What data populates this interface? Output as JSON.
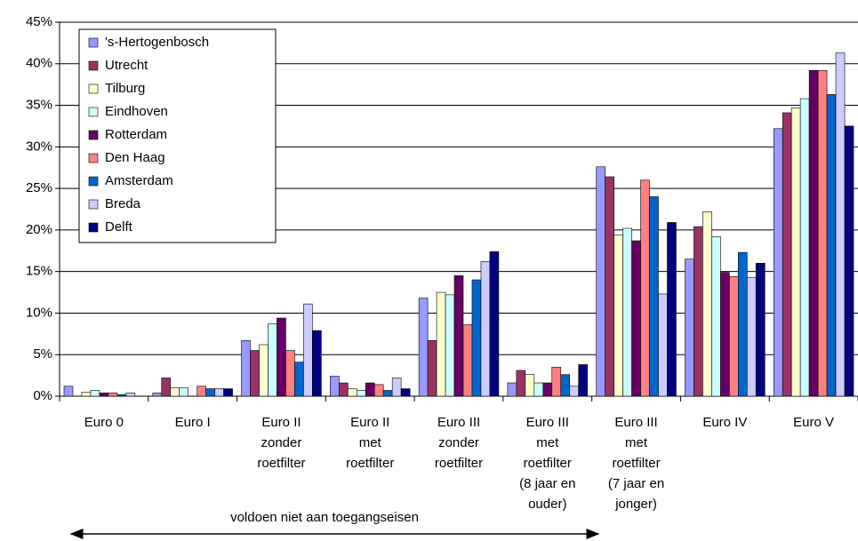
{
  "chart_data": {
    "type": "bar",
    "annotation": "voldoen niet aan toegangseisen",
    "categories": [
      "Euro 0",
      "Euro I",
      "Euro II\nzonder\nroetfilter",
      "Euro II\nmet\nroetfilter",
      "Euro III\nzonder\nroetfilter",
      "Euro III\nmet\nroetfilter\n(8 jaar en\nouder)",
      "Euro III\nmet\nroetfilter\n(7 jaar en\njonger)",
      "Euro IV",
      "Euro V"
    ],
    "series": [
      {
        "name": "'s-Hertogenbosch",
        "color": "#9999ff",
        "values": [
          1.2,
          0.4,
          6.7,
          2.4,
          11.8,
          1.6,
          27.6,
          16.5,
          32.2
        ]
      },
      {
        "name": "Utrecht",
        "color": "#993366",
        "values": [
          0,
          2.2,
          5.5,
          1.6,
          6.7,
          3.1,
          26.4,
          20.4,
          34.1
        ]
      },
      {
        "name": "Tilburg",
        "color": "#ffffcc",
        "values": [
          0.5,
          1.0,
          6.2,
          0.9,
          12.5,
          2.6,
          19.4,
          22.2,
          34.7
        ]
      },
      {
        "name": "Eindhoven",
        "color": "#ccffff",
        "values": [
          0.7,
          1.0,
          8.7,
          0.7,
          12.2,
          1.6,
          20.2,
          19.2,
          35.8
        ]
      },
      {
        "name": "Rotterdam",
        "color": "#660066",
        "values": [
          0.4,
          0,
          9.4,
          1.6,
          14.5,
          1.6,
          18.7,
          14.9,
          39.2
        ]
      },
      {
        "name": "Den Haag",
        "color": "#ff8080",
        "values": [
          0.4,
          1.2,
          5.5,
          1.4,
          8.6,
          3.5,
          26.0,
          14.4,
          39.2
        ]
      },
      {
        "name": "Amsterdam",
        "color": "#0066cc",
        "values": [
          0.2,
          0.9,
          4.1,
          0.7,
          14.0,
          2.6,
          24.0,
          17.3,
          36.3
        ]
      },
      {
        "name": "Breda",
        "color": "#ccccff",
        "values": [
          0.4,
          0.9,
          11.1,
          2.2,
          16.2,
          1.2,
          12.3,
          14.3,
          41.3
        ]
      },
      {
        "name": "Delft",
        "color": "#000080",
        "values": [
          0,
          0.9,
          7.9,
          0.9,
          17.4,
          3.8,
          20.9,
          16.0,
          32.5
        ]
      }
    ],
    "ylim": [
      0,
      45
    ],
    "yticks": [
      {
        "value": 0,
        "label": "0%"
      },
      {
        "value": 5,
        "label": "5%"
      },
      {
        "value": 10,
        "label": "10%"
      },
      {
        "value": 15,
        "label": "15%"
      },
      {
        "value": 20,
        "label": "20%"
      },
      {
        "value": 25,
        "label": "25%"
      },
      {
        "value": 30,
        "label": "30%"
      },
      {
        "value": 35,
        "label": "35%"
      },
      {
        "value": 40,
        "label": "40%"
      },
      {
        "value": 45,
        "label": "45%"
      }
    ],
    "grid": true
  }
}
